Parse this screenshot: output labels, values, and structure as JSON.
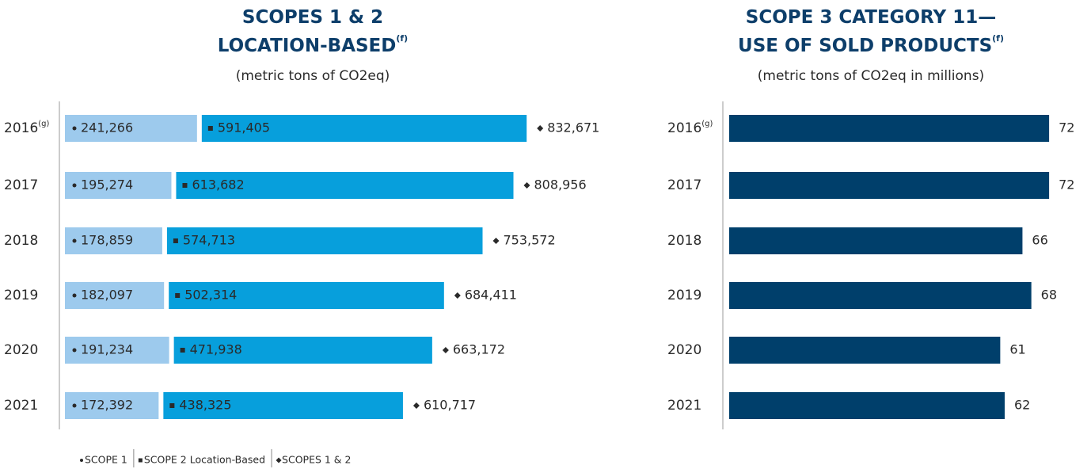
{
  "chart_data": [
    {
      "type": "stacked_bar",
      "orientation": "horizontal",
      "title": [
        "SCOPES 1 & 2",
        "LOCATION-BASED"
      ],
      "title_superscript": "(f)",
      "subtitle": "(metric tons of CO2eq)",
      "categories": [
        "2016",
        "2017",
        "2018",
        "2019",
        "2020",
        "2021"
      ],
      "category_superscripts": [
        "(g)",
        null,
        null,
        null,
        null,
        null
      ],
      "xlim": [
        0,
        1000000
      ],
      "series": [
        {
          "name": "SCOPE 1",
          "color": "#9dcaed",
          "values": [
            241266,
            195274,
            178859,
            182097,
            191234,
            172392
          ],
          "value_labels": [
            "241,266",
            "195,274",
            "178,859",
            "182,097",
            "191,234",
            "172,392"
          ]
        },
        {
          "name": "SCOPE 2 Location-Based",
          "color": "#079fdc",
          "values": [
            591405,
            613682,
            574713,
            502314,
            471938,
            438325
          ],
          "value_labels": [
            "591,405",
            "613,682",
            "574,713",
            "502,314",
            "471,938",
            "438,325"
          ]
        }
      ],
      "totals": {
        "name": "SCOPES 1 & 2",
        "values": [
          832671,
          808956,
          753572,
          684411,
          663172,
          610717
        ],
        "value_labels": [
          "832,671",
          "808,956",
          "753,572",
          "684,411",
          "663,172",
          "610,717"
        ]
      }
    },
    {
      "type": "bar",
      "orientation": "horizontal",
      "title": [
        "SCOPE 3 CATEGORY 11—",
        "USE OF SOLD PRODUCTS"
      ],
      "title_superscript": "(f)",
      "subtitle": "(metric tons of CO2eq in millions)",
      "categories": [
        "2016",
        "2017",
        "2018",
        "2019",
        "2020",
        "2021"
      ],
      "category_superscripts": [
        "(g)",
        null,
        null,
        null,
        null,
        null
      ],
      "xlim": [
        0,
        80
      ],
      "color": "#003f6b",
      "values": [
        72,
        72,
        66,
        68,
        61,
        62
      ]
    }
  ]
}
